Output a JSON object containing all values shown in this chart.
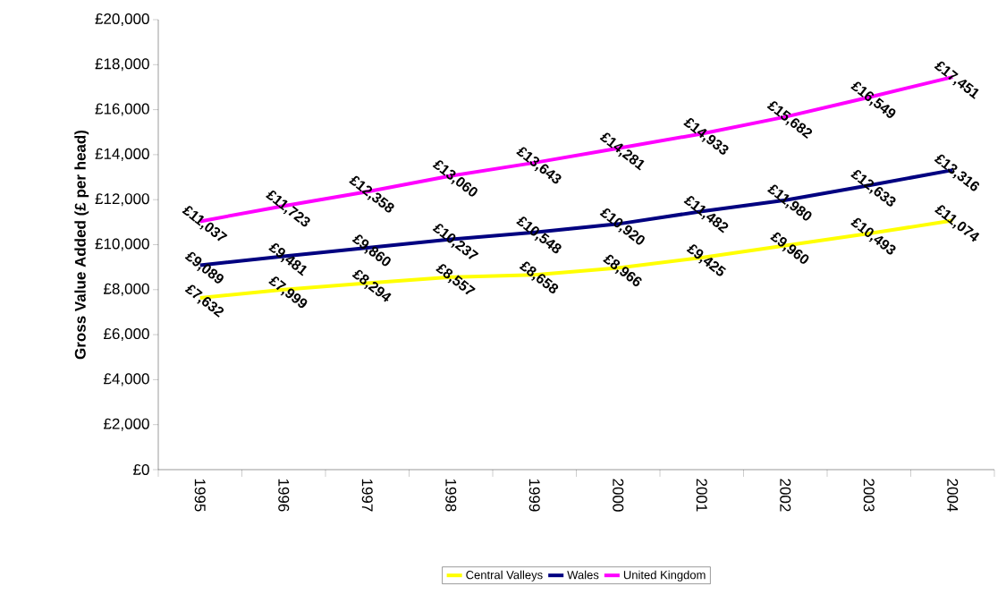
{
  "chart_data": {
    "type": "line",
    "ylabel": "Gross Value Added (£ per head)",
    "categories": [
      "1995",
      "1996",
      "1997",
      "1998",
      "1999",
      "2000",
      "2001",
      "2002",
      "2003",
      "2004"
    ],
    "series": [
      {
        "name": "Central Valleys",
        "color": "#ffff00",
        "values": [
          7632,
          7999,
          8294,
          8557,
          8658,
          8966,
          9425,
          9960,
          10493,
          11074
        ],
        "value_labels": [
          "£7,632",
          "£7,999",
          "£8,294",
          "£8,557",
          "£8,658",
          "£8,966",
          "£9,425",
          "£9,960",
          "£10,493",
          "£11,074"
        ]
      },
      {
        "name": "Wales",
        "color": "#000080",
        "values": [
          9089,
          9481,
          9860,
          10237,
          10548,
          10920,
          11482,
          11980,
          12633,
          13316
        ],
        "value_labels": [
          "£9,089",
          "£9,481",
          "£9,860",
          "£10,237",
          "£10,548",
          "£10,920",
          "£11,482",
          "£11,980",
          "£12,633",
          "£13,316"
        ]
      },
      {
        "name": "United Kingdom",
        "color": "#ff00ff",
        "values": [
          11037,
          11723,
          12358,
          13060,
          13643,
          14281,
          14933,
          15682,
          16549,
          17451
        ],
        "value_labels": [
          "£11,037",
          "£11,723",
          "£12,358",
          "£13,060",
          "£13,643",
          "£14,281",
          "£14,933",
          "£15,682",
          "£16,549",
          "£17,451"
        ]
      }
    ],
    "ylim": [
      0,
      20000
    ],
    "yticks": [
      {
        "value": 0,
        "label": "£0"
      },
      {
        "value": 2000,
        "label": "£2,000"
      },
      {
        "value": 4000,
        "label": "£4,000"
      },
      {
        "value": 6000,
        "label": "£6,000"
      },
      {
        "value": 8000,
        "label": "£8,000"
      },
      {
        "value": 10000,
        "label": "£10,000"
      },
      {
        "value": 12000,
        "label": "£12,000"
      },
      {
        "value": 14000,
        "label": "£14,000"
      },
      {
        "value": 16000,
        "label": "£16,000"
      },
      {
        "value": 18000,
        "label": "£18,000"
      },
      {
        "value": 20000,
        "label": "£20,000"
      }
    ],
    "legend": "bottom",
    "marker": "none",
    "line_style": "solid",
    "grid": false
  }
}
